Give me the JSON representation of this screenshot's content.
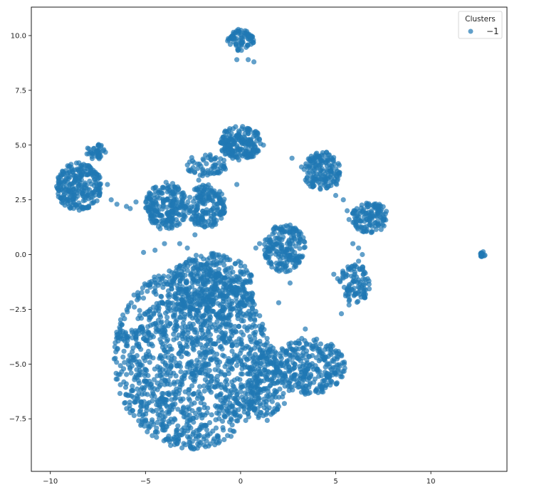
{
  "chart_data": {
    "type": "scatter",
    "title": "",
    "xlabel": "",
    "ylabel": "",
    "xlim": [
      -11,
      14
    ],
    "ylim": [
      -9.9,
      11.3
    ],
    "x_ticks": [
      -10,
      -5,
      0,
      5,
      10
    ],
    "x_tick_labels": [
      "−10",
      "−5",
      "0",
      "5",
      "10"
    ],
    "y_ticks": [
      -7.5,
      -5.0,
      -2.5,
      0.0,
      2.5,
      5.0,
      7.5,
      10.0
    ],
    "y_tick_labels": [
      "−7.5",
      "−5.0",
      "−2.5",
      "0.0",
      "2.5",
      "5.0",
      "7.5",
      "10.0"
    ],
    "grid": false,
    "legend": {
      "title": "Clusters",
      "placement": "top-right",
      "entries": [
        {
          "label": "−1",
          "color": "#1f77b4"
        }
      ]
    },
    "point_color": "#1f77b4",
    "point_alpha": 0.7,
    "series": [
      {
        "name": "−1",
        "clusters": [
          {
            "center": [
              -2.6,
              -4.7
            ],
            "radius": [
              4.1,
              4.2
            ],
            "n": 1500
          },
          {
            "center": [
              -1.5,
              -1.5
            ],
            "radius": [
              2.2,
              1.6
            ],
            "n": 350
          },
          {
            "center": [
              3.5,
              -5.1
            ],
            "radius": [
              2.0,
              1.3
            ],
            "n": 320
          },
          {
            "center": [
              1.3,
              -5.8
            ],
            "radius": [
              1.0,
              1.8
            ],
            "n": 150
          },
          {
            "center": [
              -8.5,
              3.1
            ],
            "radius": [
              1.2,
              1.1
            ],
            "n": 260
          },
          {
            "center": [
              -7.6,
              4.7
            ],
            "radius": [
              0.5,
              0.35
            ],
            "n": 40
          },
          {
            "center": [
              -3.9,
              2.2
            ],
            "radius": [
              1.1,
              1.1
            ],
            "n": 230
          },
          {
            "center": [
              -1.8,
              2.2
            ],
            "radius": [
              1.0,
              1.0
            ],
            "n": 180
          },
          {
            "center": [
              0.0,
              5.1
            ],
            "radius": [
              1.1,
              0.8
            ],
            "n": 200
          },
          {
            "center": [
              -1.8,
              4.1
            ],
            "radius": [
              1.1,
              0.5
            ],
            "n": 60
          },
          {
            "center": [
              2.3,
              0.3
            ],
            "radius": [
              1.1,
              1.1
            ],
            "n": 200
          },
          {
            "center": [
              4.3,
              3.8
            ],
            "radius": [
              1.0,
              0.9
            ],
            "n": 160
          },
          {
            "center": [
              6.8,
              1.7
            ],
            "radius": [
              1.0,
              0.7
            ],
            "n": 130
          },
          {
            "center": [
              6.0,
              -1.3
            ],
            "radius": [
              0.8,
              0.9
            ],
            "n": 100
          },
          {
            "center": [
              0.0,
              9.8
            ],
            "radius": [
              0.7,
              0.5
            ],
            "n": 80
          },
          {
            "center": [
              12.7,
              0.0
            ],
            "radius": [
              0.15,
              0.15
            ],
            "n": 12
          }
        ],
        "scatter_points": [
          [
            -5.5,
            2.4
          ],
          [
            -5.8,
            2.1
          ],
          [
            -6.5,
            2.3
          ],
          [
            -6.8,
            2.5
          ],
          [
            -7.0,
            3.2
          ],
          [
            -6.0,
            2.2
          ],
          [
            -5.1,
            0.1
          ],
          [
            -4.5,
            0.2
          ],
          [
            -3.2,
            0.5
          ],
          [
            -2.8,
            0.3
          ],
          [
            -2.2,
            3.4
          ],
          [
            -2.0,
            3.6
          ],
          [
            -1.2,
            3.9
          ],
          [
            -1.4,
            3.7
          ],
          [
            -0.2,
            3.2
          ],
          [
            -0.8,
            3.9
          ],
          [
            1.2,
            5.0
          ],
          [
            2.7,
            4.4
          ],
          [
            3.2,
            4.0
          ],
          [
            1.5,
            0.8
          ],
          [
            0.8,
            0.3
          ],
          [
            1.0,
            0.5
          ],
          [
            2.6,
            -1.3
          ],
          [
            2.0,
            -2.2
          ],
          [
            5.0,
            2.7
          ],
          [
            5.4,
            2.5
          ],
          [
            5.6,
            2.0
          ],
          [
            5.7,
            1.6
          ],
          [
            5.9,
            0.5
          ],
          [
            6.2,
            0.3
          ],
          [
            6.4,
            0.0
          ],
          [
            6.2,
            -0.3
          ],
          [
            5.3,
            -2.7
          ],
          [
            5.7,
            -2.3
          ],
          [
            4.9,
            -0.9
          ],
          [
            5.1,
            -1.1
          ],
          [
            4.5,
            -4.2
          ],
          [
            5.0,
            -4.4
          ],
          [
            3.4,
            -3.4
          ],
          [
            0.4,
            8.9
          ],
          [
            0.7,
            8.8
          ],
          [
            -0.2,
            8.9
          ],
          [
            2.2,
            -6.5
          ],
          [
            2.3,
            -6.8
          ],
          [
            1.6,
            -7.3
          ],
          [
            -3.5,
            2.5
          ],
          [
            -4.0,
            0.5
          ],
          [
            -2.4,
            0.9
          ]
        ]
      }
    ]
  }
}
